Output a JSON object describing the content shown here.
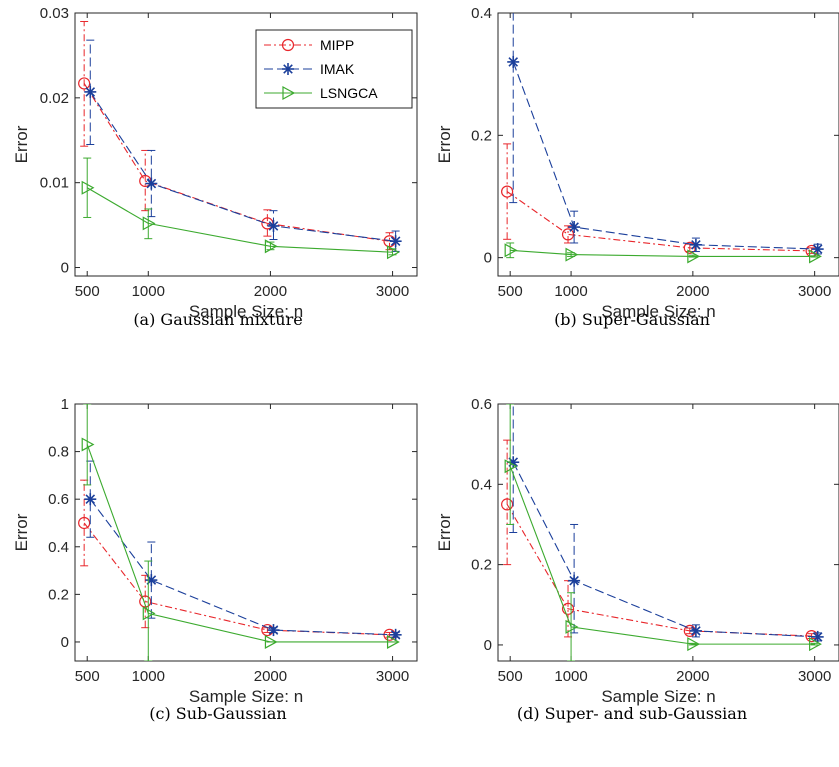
{
  "chart_data": [
    {
      "type": "line",
      "caption": "(a) Gaussian mixture",
      "xlabel": "Sample Size: n",
      "ylabel": "Error",
      "xlim": [
        400,
        3200
      ],
      "ylim": [
        -0.001,
        0.03
      ],
      "xticks": [
        500,
        1000,
        2000,
        3000
      ],
      "xtick_labels": [
        "500",
        "1000",
        "2000",
        "3000"
      ],
      "yticks": [
        0,
        0.01,
        0.02,
        0.03
      ],
      "ytick_labels": [
        "0",
        "0.01",
        "0.02",
        "0.03"
      ],
      "legend": {
        "placement": "top-right",
        "entries": [
          "MIPP",
          "IMAK",
          "LSNGCA"
        ]
      },
      "series": [
        {
          "name": "MIPP",
          "x": [
            475,
            975,
            1975,
            2975
          ],
          "values": [
            0.0217,
            0.0102,
            0.0052,
            0.0031
          ],
          "err_low": [
            0.0143,
            0.0067,
            0.0037,
            0.0021
          ],
          "err_high": [
            0.029,
            0.0138,
            0.0068,
            0.0041
          ]
        },
        {
          "name": "IMAK",
          "x": [
            525,
            1025,
            2025,
            3025
          ],
          "values": [
            0.0207,
            0.0099,
            0.0049,
            0.0031
          ],
          "err_low": [
            0.0145,
            0.006,
            0.0033,
            0.0019
          ],
          "err_high": [
            0.0268,
            0.0138,
            0.0067,
            0.0043
          ]
        },
        {
          "name": "LSNGCA",
          "x": [
            500,
            1000,
            2000,
            3000
          ],
          "values": [
            0.0094,
            0.0052,
            0.0025,
            0.0018
          ],
          "err_low": [
            0.0059,
            0.0034,
            0.0021,
            0.0015
          ],
          "err_high": [
            0.0129,
            0.0069,
            0.003,
            0.0022
          ]
        }
      ]
    },
    {
      "type": "line",
      "caption": "(b) Super-Gaussian",
      "xlabel": "Sample Size: n",
      "ylabel": "Error",
      "xlim": [
        400,
        3200
      ],
      "ylim": [
        -0.03,
        0.4
      ],
      "xticks": [
        500,
        1000,
        2000,
        3000
      ],
      "xtick_labels": [
        "500",
        "1000",
        "2000",
        "3000"
      ],
      "yticks": [
        0,
        0.2,
        0.4
      ],
      "ytick_labels": [
        "0",
        "0.2",
        "0.4"
      ],
      "series": [
        {
          "name": "MIPP",
          "x": [
            475,
            975,
            1975,
            2975
          ],
          "values": [
            0.108,
            0.038,
            0.016,
            0.011
          ],
          "err_low": [
            0.03,
            0.024,
            0.01,
            0.007
          ],
          "err_high": [
            0.186,
            0.052,
            0.022,
            0.016
          ]
        },
        {
          "name": "IMAK",
          "x": [
            525,
            1025,
            2025,
            3025
          ],
          "values": [
            0.32,
            0.05,
            0.021,
            0.014
          ],
          "err_low": [
            0.09,
            0.024,
            0.01,
            0.006
          ],
          "err_high": [
            0.55,
            0.076,
            0.032,
            0.022
          ]
        },
        {
          "name": "LSNGCA",
          "x": [
            500,
            1000,
            2000,
            3000
          ],
          "values": [
            0.012,
            0.005,
            0.002,
            0.002
          ],
          "err_low": [
            0.0,
            0.002,
            0.001,
            0.001
          ],
          "err_high": [
            0.024,
            0.008,
            0.004,
            0.003
          ]
        }
      ]
    },
    {
      "type": "line",
      "caption": "(c) Sub-Gaussian",
      "xlabel": "Sample Size: n",
      "ylabel": "Error",
      "xlim": [
        400,
        3200
      ],
      "ylim": [
        -0.08,
        1.0
      ],
      "xticks": [
        500,
        1000,
        2000,
        3000
      ],
      "xtick_labels": [
        "500",
        "1000",
        "2000",
        "3000"
      ],
      "yticks": [
        0,
        0.2,
        0.4,
        0.6,
        0.8,
        1
      ],
      "ytick_labels": [
        "0",
        "0.2",
        "0.4",
        "0.6",
        "0.8",
        "1"
      ],
      "series": [
        {
          "name": "MIPP",
          "x": [
            475,
            975,
            1975,
            2975
          ],
          "values": [
            0.5,
            0.17,
            0.05,
            0.03
          ],
          "err_low": [
            0.32,
            0.06,
            0.04,
            0.02
          ],
          "err_high": [
            0.68,
            0.28,
            0.06,
            0.04
          ]
        },
        {
          "name": "IMAK",
          "x": [
            525,
            1025,
            2025,
            3025
          ],
          "values": [
            0.6,
            0.26,
            0.05,
            0.03
          ],
          "err_low": [
            0.44,
            0.1,
            0.04,
            0.02
          ],
          "err_high": [
            0.76,
            0.42,
            0.06,
            0.04
          ]
        },
        {
          "name": "LSNGCA",
          "x": [
            500,
            1000,
            2000,
            3000
          ],
          "values": [
            0.83,
            0.12,
            0.0,
            0.0
          ],
          "err_low": [
            0.66,
            -0.08,
            0.0,
            0.0
          ],
          "err_high": [
            1.0,
            0.34,
            0.0,
            0.0
          ]
        }
      ]
    },
    {
      "type": "line",
      "caption": "(d) Super- and sub-Gaussian",
      "xlabel": "Sample Size: n",
      "ylabel": "Error",
      "xlim": [
        400,
        3200
      ],
      "ylim": [
        -0.04,
        0.6
      ],
      "xticks": [
        500,
        1000,
        2000,
        3000
      ],
      "xtick_labels": [
        "500",
        "1000",
        "2000",
        "3000"
      ],
      "yticks": [
        0,
        0.2,
        0.4,
        0.6
      ],
      "ytick_labels": [
        "0",
        "0.2",
        "0.4",
        "0.6"
      ],
      "series": [
        {
          "name": "MIPP",
          "x": [
            475,
            975,
            1975,
            2975
          ],
          "values": [
            0.35,
            0.09,
            0.035,
            0.022
          ],
          "err_low": [
            0.2,
            0.02,
            0.028,
            0.016
          ],
          "err_high": [
            0.51,
            0.16,
            0.042,
            0.028
          ]
        },
        {
          "name": "IMAK",
          "x": [
            525,
            1025,
            2025,
            3025
          ],
          "values": [
            0.455,
            0.16,
            0.035,
            0.02
          ],
          "err_low": [
            0.28,
            0.03,
            0.02,
            0.01
          ],
          "err_high": [
            0.63,
            0.3,
            0.05,
            0.03
          ]
        },
        {
          "name": "LSNGCA",
          "x": [
            500,
            1000,
            2000,
            3000
          ],
          "values": [
            0.445,
            0.045,
            0.002,
            0.002
          ],
          "err_low": [
            0.3,
            -0.04,
            0.0,
            0.0
          ],
          "err_high": [
            0.6,
            0.13,
            0.004,
            0.004
          ]
        }
      ]
    }
  ],
  "style": {
    "colors": {
      "MIPP": "#e8262b",
      "IMAK": "#1b3f9b",
      "LSNGCA": "#3caa2f"
    },
    "markers": {
      "MIPP": "circle",
      "IMAK": "asterisk",
      "LSNGCA": "triangle-right"
    },
    "dash": {
      "MIPP": "dash-dot",
      "IMAK": "dashed",
      "LSNGCA": "solid"
    }
  }
}
